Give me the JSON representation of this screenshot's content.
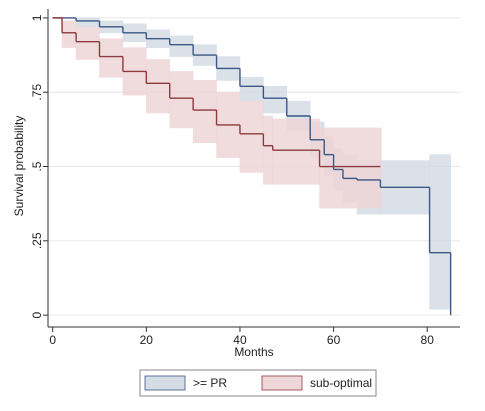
{
  "chart_data": {
    "type": "km",
    "x_label": "Months",
    "y_label": "Survival probability",
    "xlim": [
      -1,
      87
    ],
    "xticks": [
      0,
      20,
      40,
      60,
      80
    ],
    "ylim": [
      -0.04,
      1.03
    ],
    "yticks": [
      0,
      {
        "value": 0.25,
        "label": ".25"
      },
      {
        "value": 0.5,
        "label": ".5"
      },
      {
        "value": 0.75,
        "label": ".75"
      },
      1
    ],
    "grid": true,
    "series": [
      {
        "name": ">= PR",
        "color": "#3b5784",
        "band_color": "#d4dce6",
        "x": [
          0,
          5,
          10,
          15,
          20,
          25,
          30,
          35,
          40,
          45,
          50,
          55,
          58,
          60,
          62,
          65,
          70,
          80.5,
          85
        ],
        "values": [
          1,
          0.99,
          0.97,
          0.95,
          0.93,
          0.91,
          0.875,
          0.83,
          0.77,
          0.73,
          0.67,
          0.59,
          0.54,
          0.49,
          0.46,
          0.455,
          0.43,
          0.21,
          0
        ],
        "lower": [
          1,
          0.97,
          0.95,
          0.92,
          0.9,
          0.87,
          0.84,
          0.79,
          0.72,
          0.68,
          0.62,
          0.53,
          0.47,
          0.42,
          0.38,
          0.34,
          0.34,
          0.02,
          null
        ],
        "upper": [
          1,
          1,
          0.99,
          0.98,
          0.96,
          0.94,
          0.91,
          0.87,
          0.8,
          0.77,
          0.72,
          0.65,
          0.6,
          0.56,
          0.54,
          0.52,
          0.52,
          0.54,
          null
        ]
      },
      {
        "name": "sub-optimal",
        "color": "#8c3a3c",
        "band_color": "#efd6d8",
        "x": [
          0,
          2,
          5,
          10,
          15,
          20,
          25,
          30,
          35,
          40,
          45,
          47,
          57,
          70
        ],
        "values": [
          1,
          0.95,
          0.92,
          0.87,
          0.82,
          0.78,
          0.73,
          0.69,
          0.64,
          0.61,
          0.57,
          0.555,
          0.5,
          0.5
        ],
        "lower": [
          1,
          0.9,
          0.86,
          0.8,
          0.74,
          0.68,
          0.63,
          0.58,
          0.53,
          0.48,
          0.44,
          0.44,
          0.36,
          0.36
        ],
        "upper": [
          1,
          0.99,
          0.97,
          0.93,
          0.9,
          0.86,
          0.82,
          0.79,
          0.75,
          0.72,
          0.67,
          0.66,
          0.63,
          0.63
        ]
      }
    ]
  }
}
